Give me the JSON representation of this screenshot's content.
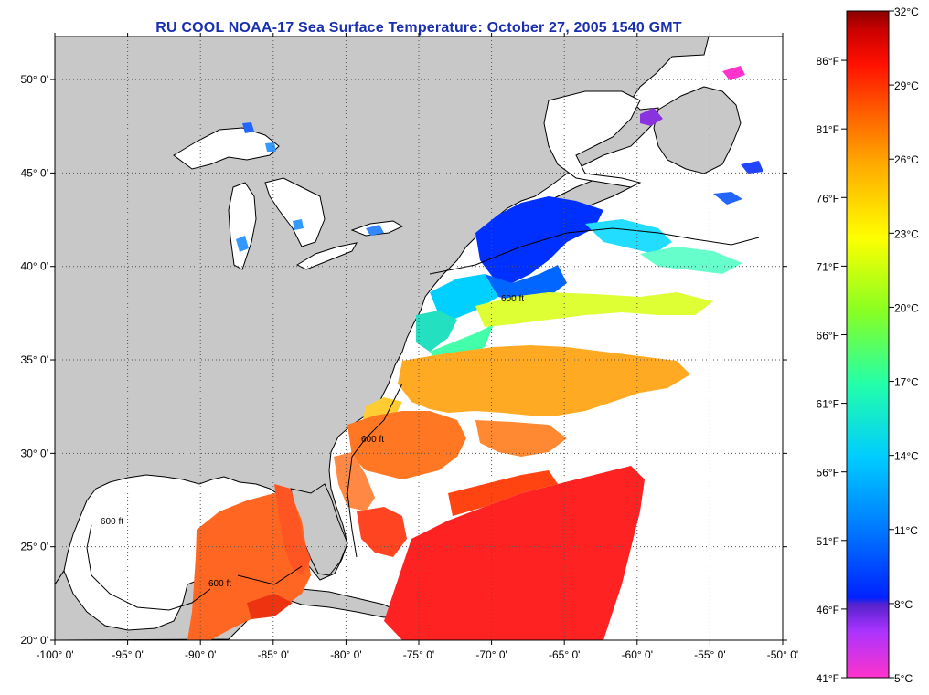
{
  "title": "RU COOL  NOAA-17  Sea Surface Temperature:  October 27, 2005 1540 GMT",
  "colors": {
    "title": "#1a2fb0",
    "land": "#c8c8c8",
    "ocean_no_data": "#ffffff",
    "coastline": "#000000",
    "grid": "#555555"
  },
  "map": {
    "lon_range": [
      -100,
      -50
    ],
    "lat_range": [
      20,
      52.3
    ],
    "lon_ticks": [
      "-100° 0'",
      "-95° 0'",
      "-90° 0'",
      "-85° 0'",
      "-80° 0'",
      "-75° 0'",
      "-70° 0'",
      "-65° 0'",
      "-60° 0'",
      "-55° 0'",
      "-50° 0'"
    ],
    "lat_ticks": [
      "20° 0'",
      "25° 0'",
      "30° 0'",
      "35° 0'",
      "40° 0'",
      "45° 0'",
      "50° 0'"
    ],
    "grid": "dotted",
    "contour_labels": [
      "600 ft",
      "600 ft",
      "600 ft",
      "600 ft"
    ]
  },
  "colorbar": {
    "celsius_labels": [
      "32°C",
      "29°C",
      "26°C",
      "23°C",
      "20°C",
      "17°C",
      "14°C",
      "11°C",
      "8°C",
      "5°C"
    ],
    "fahrenheit_labels": [
      "86°F",
      "81°F",
      "76°F",
      "71°F",
      "66°F",
      "61°F",
      "56°F",
      "51°F",
      "46°F",
      "41°F"
    ],
    "range_celsius": [
      5,
      32
    ],
    "stops": [
      "#ff33cc",
      "#aa33ff",
      "#5522cc",
      "#0022ff",
      "#0077ff",
      "#00ccff",
      "#22ffaa",
      "#88ff22",
      "#ffff00",
      "#ffaa00",
      "#ff6600",
      "#ff1100",
      "#cc0000",
      "#8b0000"
    ]
  }
}
